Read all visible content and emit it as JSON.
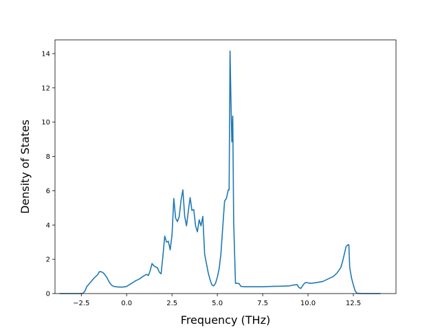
{
  "chart_data": {
    "type": "line",
    "title": "",
    "xlabel": "Frequency (THz)",
    "ylabel": "Density of States",
    "xlim": [
      -3.95,
      14.85
    ],
    "ylim": [
      0,
      14.8
    ],
    "xticks": [
      -2.5,
      0.0,
      2.5,
      5.0,
      7.5,
      10.0,
      12.5
    ],
    "xtick_labels": [
      "−2.5",
      "0.0",
      "2.5",
      "5.0",
      "7.5",
      "10.0",
      "12.5"
    ],
    "yticks": [
      0,
      2,
      4,
      6,
      8,
      10,
      12,
      14
    ],
    "ytick_labels": [
      "0",
      "2",
      "4",
      "6",
      "8",
      "10",
      "12",
      "14"
    ],
    "grid": false,
    "legend": "none",
    "line_color": "#1f77b4",
    "series": [
      {
        "x": [
          -3.7,
          -2.6,
          -2.4,
          -2.3,
          -2.2,
          -2.0,
          -1.8,
          -1.6,
          -1.5,
          -1.4,
          -1.3,
          -1.2,
          -1.1,
          -1.0,
          -0.9,
          -0.8,
          -0.7,
          -0.6,
          -0.4,
          -0.2,
          0.0,
          0.2,
          0.4,
          0.5,
          0.7,
          0.9,
          1.1,
          1.2,
          1.3,
          1.4,
          1.5,
          1.6,
          1.7,
          1.8,
          1.9,
          2.0,
          2.1,
          2.2,
          2.3,
          2.4,
          2.5,
          2.6,
          2.7,
          2.8,
          2.9,
          3.0,
          3.1,
          3.2,
          3.3,
          3.4,
          3.5,
          3.6,
          3.7,
          3.8,
          3.9,
          4.0,
          4.1,
          4.2,
          4.3,
          4.4,
          4.5,
          4.6,
          4.7,
          4.8,
          4.9,
          5.0,
          5.1,
          5.2,
          5.3,
          5.4,
          5.5,
          5.6,
          5.65,
          5.7,
          5.75,
          5.8,
          5.85,
          5.9,
          6.0,
          6.1,
          6.2,
          6.3,
          6.5,
          7.0,
          7.5,
          8.0,
          8.5,
          9.0,
          9.2,
          9.4,
          9.5,
          9.6,
          9.7,
          9.8,
          9.9,
          10.0,
          10.2,
          10.5,
          10.8,
          11.0,
          11.2,
          11.4,
          11.6,
          11.8,
          11.9,
          12.0,
          12.1,
          12.2,
          12.25,
          12.3,
          12.4,
          12.5,
          12.6,
          12.7,
          13.0,
          14.0
        ],
        "y": [
          0,
          0,
          0.02,
          0.15,
          0.4,
          0.65,
          0.9,
          1.1,
          1.28,
          1.27,
          1.22,
          1.1,
          0.95,
          0.75,
          0.58,
          0.46,
          0.42,
          0.4,
          0.38,
          0.38,
          0.42,
          0.55,
          0.68,
          0.75,
          0.85,
          1.0,
          1.12,
          1.05,
          1.35,
          1.75,
          1.62,
          1.55,
          1.5,
          1.25,
          1.15,
          2.2,
          3.35,
          3.0,
          3.05,
          2.55,
          3.4,
          5.55,
          4.4,
          4.2,
          4.5,
          5.45,
          6.05,
          4.5,
          3.95,
          4.8,
          5.6,
          4.85,
          4.9,
          3.95,
          3.6,
          4.3,
          3.95,
          4.5,
          2.3,
          1.75,
          1.2,
          0.8,
          0.5,
          0.45,
          0.6,
          0.95,
          1.45,
          2.35,
          3.9,
          5.4,
          5.55,
          6.05,
          6.05,
          14.15,
          11.3,
          8.85,
          10.35,
          4.2,
          0.6,
          0.6,
          0.58,
          0.42,
          0.4,
          0.4,
          0.4,
          0.42,
          0.43,
          0.45,
          0.5,
          0.52,
          0.35,
          0.3,
          0.45,
          0.6,
          0.65,
          0.62,
          0.6,
          0.65,
          0.7,
          0.8,
          0.9,
          1.0,
          1.2,
          1.5,
          1.85,
          2.3,
          2.75,
          2.85,
          2.85,
          1.5,
          0.9,
          0.5,
          0.15,
          0.02,
          0,
          0
        ]
      }
    ]
  }
}
